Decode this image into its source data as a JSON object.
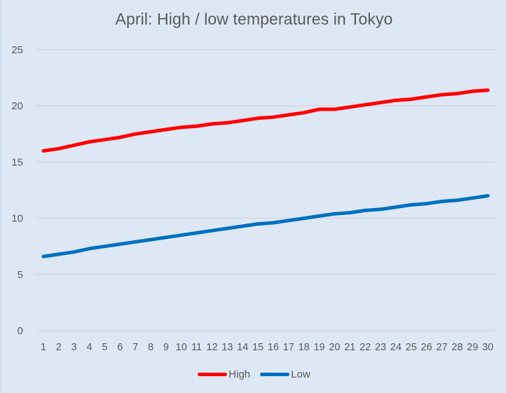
{
  "chart_data": {
    "type": "line",
    "title": "April: High / low temperatures in Tokyo",
    "xlabel": "",
    "ylabel": "",
    "ylim": [
      0,
      25
    ],
    "yticks": [
      0,
      5,
      10,
      15,
      20,
      25
    ],
    "grid": true,
    "legend_position": "bottom",
    "categories": [
      "1",
      "2",
      "3",
      "4",
      "5",
      "6",
      "7",
      "8",
      "9",
      "10",
      "11",
      "12",
      "13",
      "14",
      "15",
      "16",
      "17",
      "18",
      "19",
      "20",
      "21",
      "22",
      "23",
      "24",
      "25",
      "26",
      "27",
      "28",
      "29",
      "30"
    ],
    "series": [
      {
        "name": "High",
        "color": "#ff0000",
        "values": [
          16.0,
          16.2,
          16.5,
          16.8,
          17.0,
          17.2,
          17.5,
          17.7,
          17.9,
          18.1,
          18.2,
          18.4,
          18.5,
          18.7,
          18.9,
          19.0,
          19.2,
          19.4,
          19.7,
          19.7,
          19.9,
          20.1,
          20.3,
          20.5,
          20.6,
          20.8,
          21.0,
          21.1,
          21.3,
          21.4
        ]
      },
      {
        "name": "Low",
        "color": "#0070c0",
        "values": [
          6.6,
          6.8,
          7.0,
          7.3,
          7.5,
          7.7,
          7.9,
          8.1,
          8.3,
          8.5,
          8.7,
          8.9,
          9.1,
          9.3,
          9.5,
          9.6,
          9.8,
          10.0,
          10.2,
          10.4,
          10.5,
          10.7,
          10.8,
          11.0,
          11.2,
          11.3,
          11.5,
          11.6,
          11.8,
          12.0
        ]
      }
    ]
  },
  "colors": {
    "background": "#dde8f4",
    "gridline": "#d0d7df",
    "text": "#595959"
  }
}
